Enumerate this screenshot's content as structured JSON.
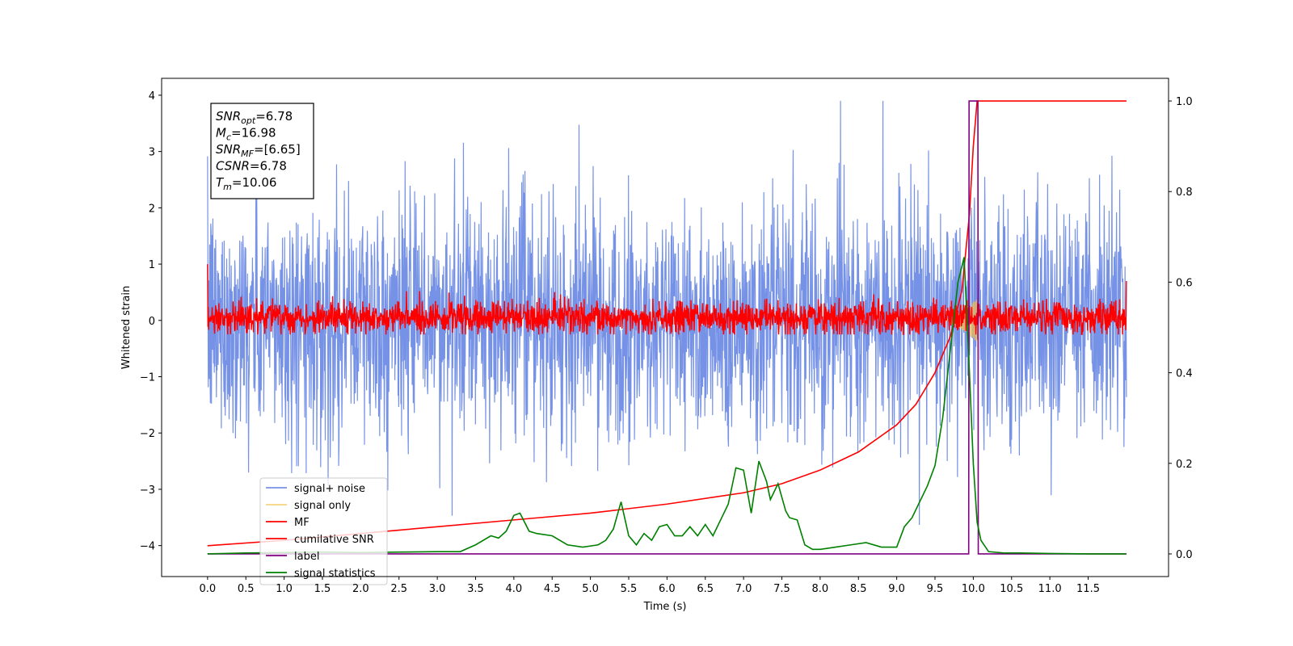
{
  "chart_data": {
    "type": "line",
    "xlabel": "Time (s)",
    "ylabel": "Whitened strain",
    "xlim": [
      -0.6,
      12.55
    ],
    "ylim": [
      -4.55,
      4.3
    ],
    "y2lim": [
      -0.05,
      1.05
    ],
    "xticks": [
      "0.0",
      "0.5",
      "1.0",
      "1.5",
      "2.0",
      "2.5",
      "3.0",
      "3.5",
      "4.0",
      "4.5",
      "5.0",
      "5.5",
      "6.0",
      "6.5",
      "7.0",
      "7.5",
      "8.0",
      "8.5",
      "9.0",
      "9.5",
      "10.0",
      "10.5",
      "11.0",
      "11.5"
    ],
    "yticks": [
      "4",
      "3",
      "2",
      "1",
      "0",
      "−1",
      "−2",
      "−3",
      "−4"
    ],
    "y2ticks": [
      "1.0",
      "0.8",
      "0.6",
      "0.4",
      "0.2",
      "0.0"
    ],
    "colors": {
      "signal_noise": "#3c64dc",
      "signal_only": "#f5c04a",
      "mf": "#ff0000",
      "cumulative_snr": "#ff0000",
      "label": "#800080",
      "signal_statistics": "#008000"
    },
    "annotation": [
      {
        "sym": "SNR",
        "sub": "opt",
        "val": "=6.78"
      },
      {
        "sym": "M",
        "sub": "c",
        "val": "=16.98"
      },
      {
        "sym": "SNR",
        "sub": "MF",
        "val": "=[6.65]"
      },
      {
        "sym": "CSNR",
        "sub": "",
        "val": "=6.78"
      },
      {
        "sym": "T",
        "sub": "m",
        "val": "=10.06"
      }
    ],
    "legend_position": "lower-left",
    "series": [
      {
        "name": "signal+ noise",
        "axis": "left",
        "kind": "noise",
        "x_range": [
          0,
          12
        ],
        "std": 1.0,
        "range": [
          -4.2,
          3.9
        ]
      },
      {
        "name": "signal only",
        "axis": "left",
        "kind": "chirp",
        "x_range": [
          9.6,
          10.06
        ],
        "amplitude_max": 0.4
      },
      {
        "name": "MF",
        "axis": "left",
        "kind": "noise",
        "x_range": [
          0,
          12
        ],
        "std": 0.18,
        "range": [
          -0.25,
          0.7
        ]
      },
      {
        "name": "cumilative SNR",
        "axis": "right",
        "x": [
          0,
          1,
          2,
          3,
          4,
          5,
          6,
          7,
          7.5,
          8,
          8.5,
          9,
          9.25,
          9.5,
          9.7,
          9.85,
          9.95,
          10.0,
          10.05,
          12.0
        ],
        "y": [
          0.018,
          0.03,
          0.045,
          0.06,
          0.075,
          0.09,
          0.11,
          0.135,
          0.155,
          0.185,
          0.225,
          0.285,
          0.33,
          0.4,
          0.48,
          0.58,
          0.75,
          0.9,
          1.0,
          1.0
        ]
      },
      {
        "name": "label",
        "axis": "right",
        "x": [
          0,
          9.94,
          9.945,
          10.06,
          10.065,
          12.0
        ],
        "y": [
          0.0,
          0.0,
          1.0,
          1.0,
          0.0,
          0.0
        ]
      },
      {
        "name": "signal statistics",
        "axis": "right",
        "x": [
          0,
          0.5,
          1.0,
          1.5,
          2.0,
          2.5,
          3.0,
          3.3,
          3.5,
          3.7,
          3.8,
          3.9,
          4.0,
          4.08,
          4.2,
          4.3,
          4.5,
          4.7,
          4.9,
          5.1,
          5.2,
          5.3,
          5.4,
          5.5,
          5.6,
          5.7,
          5.8,
          5.9,
          6.0,
          6.1,
          6.2,
          6.3,
          6.4,
          6.5,
          6.6,
          6.8,
          6.9,
          7.0,
          7.1,
          7.2,
          7.3,
          7.35,
          7.45,
          7.55,
          7.6,
          7.7,
          7.8,
          7.9,
          8.0,
          8.2,
          8.4,
          8.6,
          8.8,
          9.0,
          9.1,
          9.2,
          9.3,
          9.4,
          9.5,
          9.6,
          9.7,
          9.8,
          9.88,
          9.95,
          10.0,
          10.05,
          10.1,
          10.2,
          10.4,
          10.6,
          11.0,
          11.5,
          12.0
        ],
        "y": [
          0.0,
          0.002,
          0.003,
          0.004,
          0.003,
          0.004,
          0.005,
          0.005,
          0.02,
          0.04,
          0.035,
          0.05,
          0.085,
          0.09,
          0.05,
          0.045,
          0.04,
          0.02,
          0.015,
          0.02,
          0.03,
          0.055,
          0.115,
          0.04,
          0.02,
          0.045,
          0.03,
          0.06,
          0.065,
          0.04,
          0.04,
          0.06,
          0.04,
          0.065,
          0.04,
          0.11,
          0.19,
          0.185,
          0.09,
          0.205,
          0.16,
          0.12,
          0.155,
          0.095,
          0.08,
          0.075,
          0.02,
          0.01,
          0.01,
          0.015,
          0.02,
          0.025,
          0.015,
          0.015,
          0.06,
          0.08,
          0.115,
          0.15,
          0.195,
          0.3,
          0.45,
          0.6,
          0.655,
          0.4,
          0.2,
          0.07,
          0.03,
          0.005,
          0.002,
          0.002,
          0.001,
          0.0,
          0.0
        ]
      }
    ]
  }
}
